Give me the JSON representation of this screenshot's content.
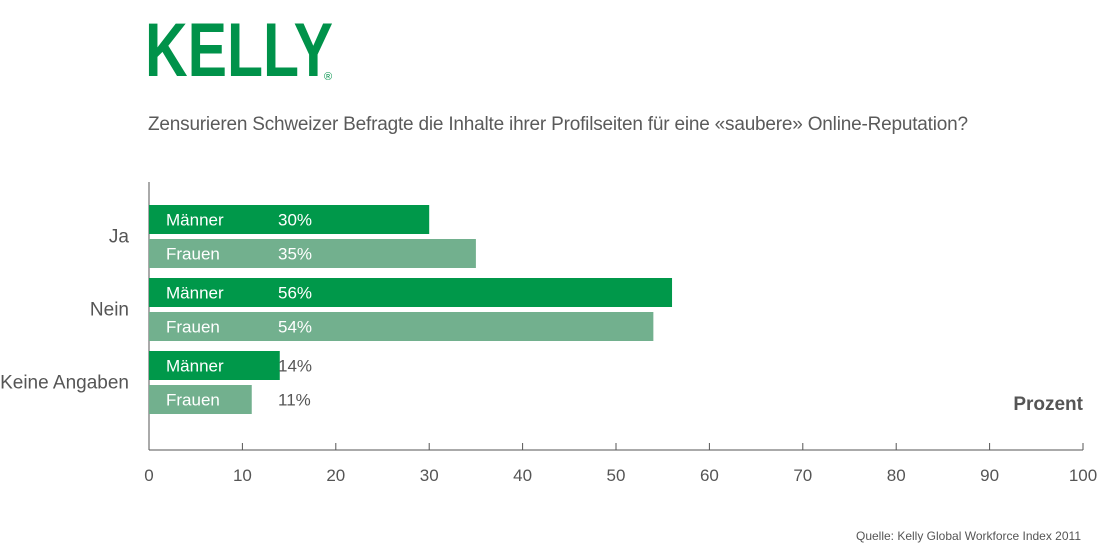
{
  "logo": {
    "text": "KELLY",
    "mark": "®",
    "color": "#00924a"
  },
  "title": "Zensurieren Schweizer Befragte die Inhalte ihrer Profilseiten für eine «saubere» Online-Reputation?",
  "source": "Quelle: Kelly Global Workforce Index 2011",
  "chart_data": {
    "type": "bar",
    "orientation": "horizontal",
    "categories": [
      "Ja",
      "Nein",
      "Keine Angaben"
    ],
    "series": [
      {
        "name": "Männer",
        "values": [
          30,
          56,
          14
        ],
        "value_labels": [
          "30%",
          "56%",
          "14%"
        ],
        "color": "#00984a"
      },
      {
        "name": "Frauen",
        "values": [
          35,
          54,
          11
        ],
        "value_labels": [
          "35%",
          "54%",
          "11%"
        ],
        "color": "#72b08e"
      }
    ],
    "xlabel": "Prozent",
    "xlim": [
      0,
      100
    ],
    "xticks": [
      0,
      10,
      20,
      30,
      40,
      50,
      60,
      70,
      80,
      90,
      100
    ],
    "grid": false
  }
}
